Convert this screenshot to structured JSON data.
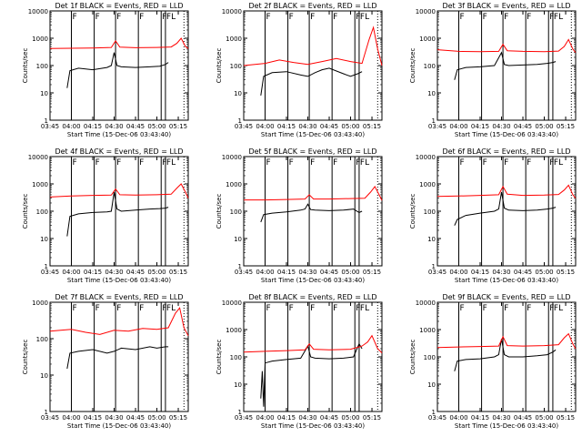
{
  "figure": {
    "colors": {
      "events": "#000000",
      "lld": "#ff0000",
      "axes": "#000000",
      "background": "#ffffff"
    },
    "y_scale": "log",
    "y_ticks": [
      1,
      10,
      100,
      1000,
      10000
    ],
    "y_tick_labels": [
      "1",
      "10",
      "100",
      "1000",
      "10000"
    ],
    "x_tick_labels": [
      "03:45",
      "04:00",
      "04:15",
      "04:30",
      "04:45",
      "05:00",
      "05:15"
    ]
  },
  "chart_data": [
    {
      "type": "line",
      "title": "Det 1f BLACK = Events, RED = LLD",
      "xlabel": "Start Time (15-Dec-06 03:43:40)",
      "ylabel": "Counts/sec",
      "xlim": [
        "03:45",
        "05:22"
      ],
      "ylim": [
        1,
        10000
      ],
      "grid": false,
      "markers": [
        {
          "x": "04:00",
          "label": "F"
        },
        {
          "x": "04:16",
          "label": "F"
        },
        {
          "x": "04:31",
          "label": "F"
        },
        {
          "x": "04:47",
          "label": "F"
        },
        {
          "x": "05:03",
          "label": "F"
        },
        {
          "x": "05:06",
          "label": "FL"
        }
      ],
      "series": [
        {
          "name": "Events",
          "color": "#000000",
          "x": [
            "03:57",
            "03:59",
            "04:05",
            "04:15",
            "04:25",
            "04:28",
            "04:30",
            "04:32",
            "04:35",
            "04:45",
            "04:55",
            "05:02",
            "05:06",
            "05:08"
          ],
          "y": [
            15,
            65,
            80,
            70,
            85,
            100,
            300,
            100,
            90,
            85,
            90,
            95,
            110,
            130
          ]
        },
        {
          "name": "LLD",
          "color": "#ff0000",
          "x": [
            "03:45",
            "04:00",
            "04:15",
            "04:28",
            "04:31",
            "04:34",
            "04:45",
            "05:00",
            "05:10",
            "05:14",
            "05:17",
            "05:20",
            "05:22"
          ],
          "y": [
            420,
            430,
            440,
            460,
            800,
            470,
            450,
            460,
            480,
            650,
            1000,
            500,
            420
          ]
        }
      ]
    },
    {
      "type": "line",
      "title": "Det 2f BLACK = Events, RED = LLD",
      "xlabel": "Start Time (15-Dec-06 03:43:40)",
      "ylabel": "Counts/sec",
      "xlim": [
        "03:45",
        "05:22"
      ],
      "ylim": [
        1,
        10000
      ],
      "grid": false,
      "markers": [
        {
          "x": "04:00",
          "label": "F"
        },
        {
          "x": "04:16",
          "label": "F"
        },
        {
          "x": "04:31",
          "label": "F"
        },
        {
          "x": "04:47",
          "label": "F"
        },
        {
          "x": "05:03",
          "label": "F"
        },
        {
          "x": "05:06",
          "label": "FL"
        }
      ],
      "series": [
        {
          "name": "Events",
          "color": "#000000",
          "x": [
            "03:57",
            "03:59",
            "04:05",
            "04:15",
            "04:25",
            "04:30",
            "04:35",
            "04:40",
            "04:45",
            "04:55",
            "05:00",
            "05:05",
            "05:08"
          ],
          "y": [
            8,
            40,
            55,
            60,
            45,
            40,
            55,
            70,
            80,
            50,
            40,
            50,
            60
          ]
        },
        {
          "name": "LLD",
          "color": "#ff0000",
          "x": [
            "03:45",
            "04:00",
            "04:10",
            "04:20",
            "04:30",
            "04:40",
            "04:50",
            "05:00",
            "05:08",
            "05:13",
            "05:16",
            "05:19",
            "05:22"
          ],
          "y": [
            100,
            120,
            160,
            130,
            110,
            140,
            180,
            140,
            120,
            900,
            2500,
            400,
            100
          ]
        }
      ]
    },
    {
      "type": "line",
      "title": "Det 3f BLACK = Events, RED = LLD",
      "xlabel": "Start Time (15-Dec-06 03:43:40)",
      "ylabel": "Counts/sec",
      "xlim": [
        "03:45",
        "05:22"
      ],
      "ylim": [
        1,
        10000
      ],
      "grid": false,
      "markers": [
        {
          "x": "04:00",
          "label": "F"
        },
        {
          "x": "04:16",
          "label": "F"
        },
        {
          "x": "04:31",
          "label": "F"
        },
        {
          "x": "04:47",
          "label": "F"
        },
        {
          "x": "05:03",
          "label": "F"
        },
        {
          "x": "05:06",
          "label": "FL"
        }
      ],
      "series": [
        {
          "name": "Events",
          "color": "#000000",
          "x": [
            "03:57",
            "03:59",
            "04:05",
            "04:15",
            "04:25",
            "04:30",
            "04:32",
            "04:35",
            "04:45",
            "04:55",
            "05:02",
            "05:06",
            "05:08"
          ],
          "y": [
            30,
            70,
            85,
            90,
            100,
            300,
            110,
            100,
            105,
            110,
            120,
            130,
            140
          ]
        },
        {
          "name": "LLD",
          "color": "#ff0000",
          "x": [
            "03:45",
            "04:00",
            "04:15",
            "04:28",
            "04:31",
            "04:34",
            "04:45",
            "05:00",
            "05:10",
            "05:14",
            "05:17",
            "05:20",
            "05:22"
          ],
          "y": [
            380,
            330,
            320,
            330,
            600,
            350,
            330,
            320,
            340,
            500,
            900,
            400,
            300
          ]
        }
      ]
    },
    {
      "type": "line",
      "title": "Det 4f BLACK = Events, RED = LLD",
      "xlabel": "Start Time (15-Dec-06 03:43:40)",
      "ylabel": "Counts/sec",
      "xlim": [
        "03:45",
        "05:22"
      ],
      "ylim": [
        1,
        10000
      ],
      "grid": false,
      "markers": [
        {
          "x": "04:00",
          "label": "F"
        },
        {
          "x": "04:16",
          "label": "F"
        },
        {
          "x": "04:31",
          "label": "F"
        },
        {
          "x": "04:47",
          "label": "F"
        },
        {
          "x": "05:03",
          "label": "F"
        },
        {
          "x": "05:06",
          "label": "FL"
        }
      ],
      "series": [
        {
          "name": "Events",
          "color": "#000000",
          "x": [
            "03:57",
            "03:59",
            "04:05",
            "04:15",
            "04:25",
            "04:28",
            "04:30",
            "04:32",
            "04:35",
            "04:45",
            "04:55",
            "05:02",
            "05:06",
            "05:08"
          ],
          "y": [
            12,
            65,
            80,
            90,
            95,
            100,
            500,
            120,
            100,
            110,
            120,
            125,
            130,
            140
          ]
        },
        {
          "name": "LLD",
          "color": "#ff0000",
          "x": [
            "03:45",
            "04:00",
            "04:15",
            "04:28",
            "04:31",
            "04:34",
            "04:45",
            "05:00",
            "05:10",
            "05:14",
            "05:17",
            "05:20",
            "05:22"
          ],
          "y": [
            330,
            360,
            380,
            390,
            650,
            400,
            390,
            400,
            420,
            700,
            1000,
            500,
            300
          ]
        }
      ]
    },
    {
      "type": "line",
      "title": "Det 5f BLACK = Events, RED = LLD",
      "xlabel": "Start Time (15-Dec-06 03:43:40)",
      "ylabel": "Counts/sec",
      "xlim": [
        "03:45",
        "05:22"
      ],
      "ylim": [
        1,
        10000
      ],
      "grid": false,
      "markers": [
        {
          "x": "04:00",
          "label": "F"
        },
        {
          "x": "04:16",
          "label": "F"
        },
        {
          "x": "04:31",
          "label": "F"
        },
        {
          "x": "04:47",
          "label": "F"
        },
        {
          "x": "05:03",
          "label": "F"
        },
        {
          "x": "05:06",
          "label": "FL"
        }
      ],
      "series": [
        {
          "name": "Events",
          "color": "#000000",
          "x": [
            "03:57",
            "03:59",
            "04:05",
            "04:15",
            "04:25",
            "04:28",
            "04:30",
            "04:32",
            "04:35",
            "04:45",
            "04:55",
            "05:02",
            "05:06",
            "05:08"
          ],
          "y": [
            40,
            75,
            85,
            95,
            110,
            120,
            180,
            115,
            110,
            105,
            110,
            120,
            90,
            100
          ]
        },
        {
          "name": "LLD",
          "color": "#ff0000",
          "x": [
            "03:45",
            "04:00",
            "04:15",
            "04:28",
            "04:31",
            "04:34",
            "04:45",
            "05:00",
            "05:10",
            "05:14",
            "05:17",
            "05:20",
            "05:22"
          ],
          "y": [
            260,
            260,
            270,
            280,
            400,
            280,
            280,
            290,
            300,
            500,
            800,
            400,
            250
          ]
        }
      ]
    },
    {
      "type": "line",
      "title": "Det 6f BLACK = Events, RED = LLD",
      "xlabel": "Start Time (15-Dec-06 03:43:40)",
      "ylabel": "Counts/sec",
      "xlim": [
        "03:45",
        "05:22"
      ],
      "ylim": [
        1,
        10000
      ],
      "grid": false,
      "markers": [
        {
          "x": "04:00",
          "label": "F"
        },
        {
          "x": "04:16",
          "label": "F"
        },
        {
          "x": "04:31",
          "label": "F"
        },
        {
          "x": "04:47",
          "label": "F"
        },
        {
          "x": "05:03",
          "label": "F"
        },
        {
          "x": "05:06",
          "label": "FL"
        }
      ],
      "series": [
        {
          "name": "Events",
          "color": "#000000",
          "x": [
            "03:57",
            "03:59",
            "04:05",
            "04:15",
            "04:25",
            "04:28",
            "04:30",
            "04:32",
            "04:35",
            "04:45",
            "04:55",
            "05:02",
            "05:06",
            "05:08"
          ],
          "y": [
            30,
            50,
            70,
            85,
            100,
            120,
            500,
            130,
            110,
            105,
            110,
            120,
            130,
            140
          ]
        },
        {
          "name": "LLD",
          "color": "#ff0000",
          "x": [
            "03:45",
            "04:00",
            "04:15",
            "04:28",
            "04:31",
            "04:34",
            "04:45",
            "05:00",
            "05:10",
            "05:14",
            "05:17",
            "05:20",
            "05:22"
          ],
          "y": [
            350,
            360,
            380,
            400,
            800,
            420,
            380,
            390,
            410,
            600,
            900,
            400,
            300
          ]
        }
      ]
    },
    {
      "type": "line",
      "title": "Det 7f BLACK = Events, RED = LLD",
      "xlabel": "Start Time (15-Dec-06 03:43:40)",
      "ylabel": "Counts/sec",
      "xlim": [
        "03:45",
        "05:22"
      ],
      "ylim": [
        1,
        1000
      ],
      "y_ticks": [
        1,
        10,
        100,
        1000
      ],
      "y_tick_labels": [
        "1",
        "10",
        "100",
        "1000"
      ],
      "grid": false,
      "markers": [
        {
          "x": "04:00",
          "label": "F"
        },
        {
          "x": "04:16",
          "label": "F"
        },
        {
          "x": "04:31",
          "label": "F"
        },
        {
          "x": "04:47",
          "label": "F"
        },
        {
          "x": "05:03",
          "label": "F"
        },
        {
          "x": "05:06",
          "label": "FL"
        }
      ],
      "series": [
        {
          "name": "Events",
          "color": "#000000",
          "x": [
            "03:57",
            "03:59",
            "04:05",
            "04:15",
            "04:25",
            "04:30",
            "04:35",
            "04:45",
            "04:55",
            "05:00",
            "05:06",
            "05:08"
          ],
          "y": [
            15,
            40,
            45,
            50,
            40,
            45,
            55,
            50,
            60,
            55,
            60,
            60
          ]
        },
        {
          "name": "LLD",
          "color": "#ff0000",
          "x": [
            "03:45",
            "04:00",
            "04:10",
            "04:20",
            "04:30",
            "04:40",
            "04:50",
            "05:00",
            "05:08",
            "05:13",
            "05:16",
            "05:19",
            "05:22"
          ],
          "y": [
            160,
            180,
            150,
            130,
            170,
            160,
            190,
            180,
            200,
            500,
            700,
            200,
            120
          ]
        }
      ]
    },
    {
      "type": "line",
      "title": "Det 8f BLACK = Events, RED = LLD",
      "xlabel": "Start Time (15-Dec-06 03:43:40)",
      "ylabel": "Counts/sec",
      "xlim": [
        "03:45",
        "05:22"
      ],
      "ylim": [
        1,
        10000
      ],
      "grid": false,
      "markers": [
        {
          "x": "04:00",
          "label": "F"
        },
        {
          "x": "04:16",
          "label": "F"
        },
        {
          "x": "04:31",
          "label": "F"
        },
        {
          "x": "04:47",
          "label": "F"
        },
        {
          "x": "05:03",
          "label": "F"
        },
        {
          "x": "05:06",
          "label": "FL"
        }
      ],
      "series": [
        {
          "name": "Events",
          "color": "#000000",
          "x": [
            "03:57",
            "03:58",
            "03:59",
            "04:00",
            "04:05",
            "04:15",
            "04:25",
            "04:30",
            "04:32",
            "04:35",
            "04:45",
            "04:55",
            "05:02",
            "05:06",
            "05:08"
          ],
          "y": [
            3,
            30,
            1.5,
            60,
            70,
            80,
            90,
            250,
            100,
            90,
            85,
            90,
            100,
            300,
            200
          ]
        },
        {
          "name": "LLD",
          "color": "#ff0000",
          "x": [
            "03:45",
            "04:00",
            "04:15",
            "04:28",
            "04:31",
            "04:34",
            "04:45",
            "05:00",
            "05:08",
            "05:12",
            "05:15",
            "05:19",
            "05:22"
          ],
          "y": [
            150,
            160,
            170,
            180,
            300,
            190,
            180,
            190,
            250,
            350,
            600,
            200,
            140
          ]
        }
      ]
    },
    {
      "type": "line",
      "title": "Det 9f BLACK = Events, RED = LLD",
      "xlabel": "Start Time (15-Dec-06 03:43:40)",
      "ylabel": "Counts/sec",
      "xlim": [
        "03:45",
        "05:22"
      ],
      "ylim": [
        1,
        10000
      ],
      "grid": false,
      "markers": [
        {
          "x": "04:00",
          "label": "F"
        },
        {
          "x": "04:16",
          "label": "F"
        },
        {
          "x": "04:31",
          "label": "F"
        },
        {
          "x": "04:47",
          "label": "F"
        },
        {
          "x": "05:03",
          "label": "F"
        },
        {
          "x": "05:06",
          "label": "FL"
        }
      ],
      "series": [
        {
          "name": "Events",
          "color": "#000000",
          "x": [
            "03:57",
            "03:59",
            "04:05",
            "04:15",
            "04:25",
            "04:28",
            "04:30",
            "04:32",
            "04:35",
            "04:45",
            "04:55",
            "05:02",
            "05:06",
            "05:08"
          ],
          "y": [
            30,
            70,
            80,
            85,
            100,
            120,
            450,
            120,
            100,
            100,
            110,
            120,
            150,
            180
          ]
        },
        {
          "name": "LLD",
          "color": "#ff0000",
          "x": [
            "03:45",
            "04:00",
            "04:15",
            "04:28",
            "04:31",
            "04:34",
            "04:45",
            "05:00",
            "05:10",
            "05:14",
            "05:17",
            "05:20",
            "05:22"
          ],
          "y": [
            220,
            230,
            240,
            250,
            550,
            260,
            250,
            260,
            280,
            500,
            700,
            300,
            200
          ]
        }
      ]
    }
  ]
}
